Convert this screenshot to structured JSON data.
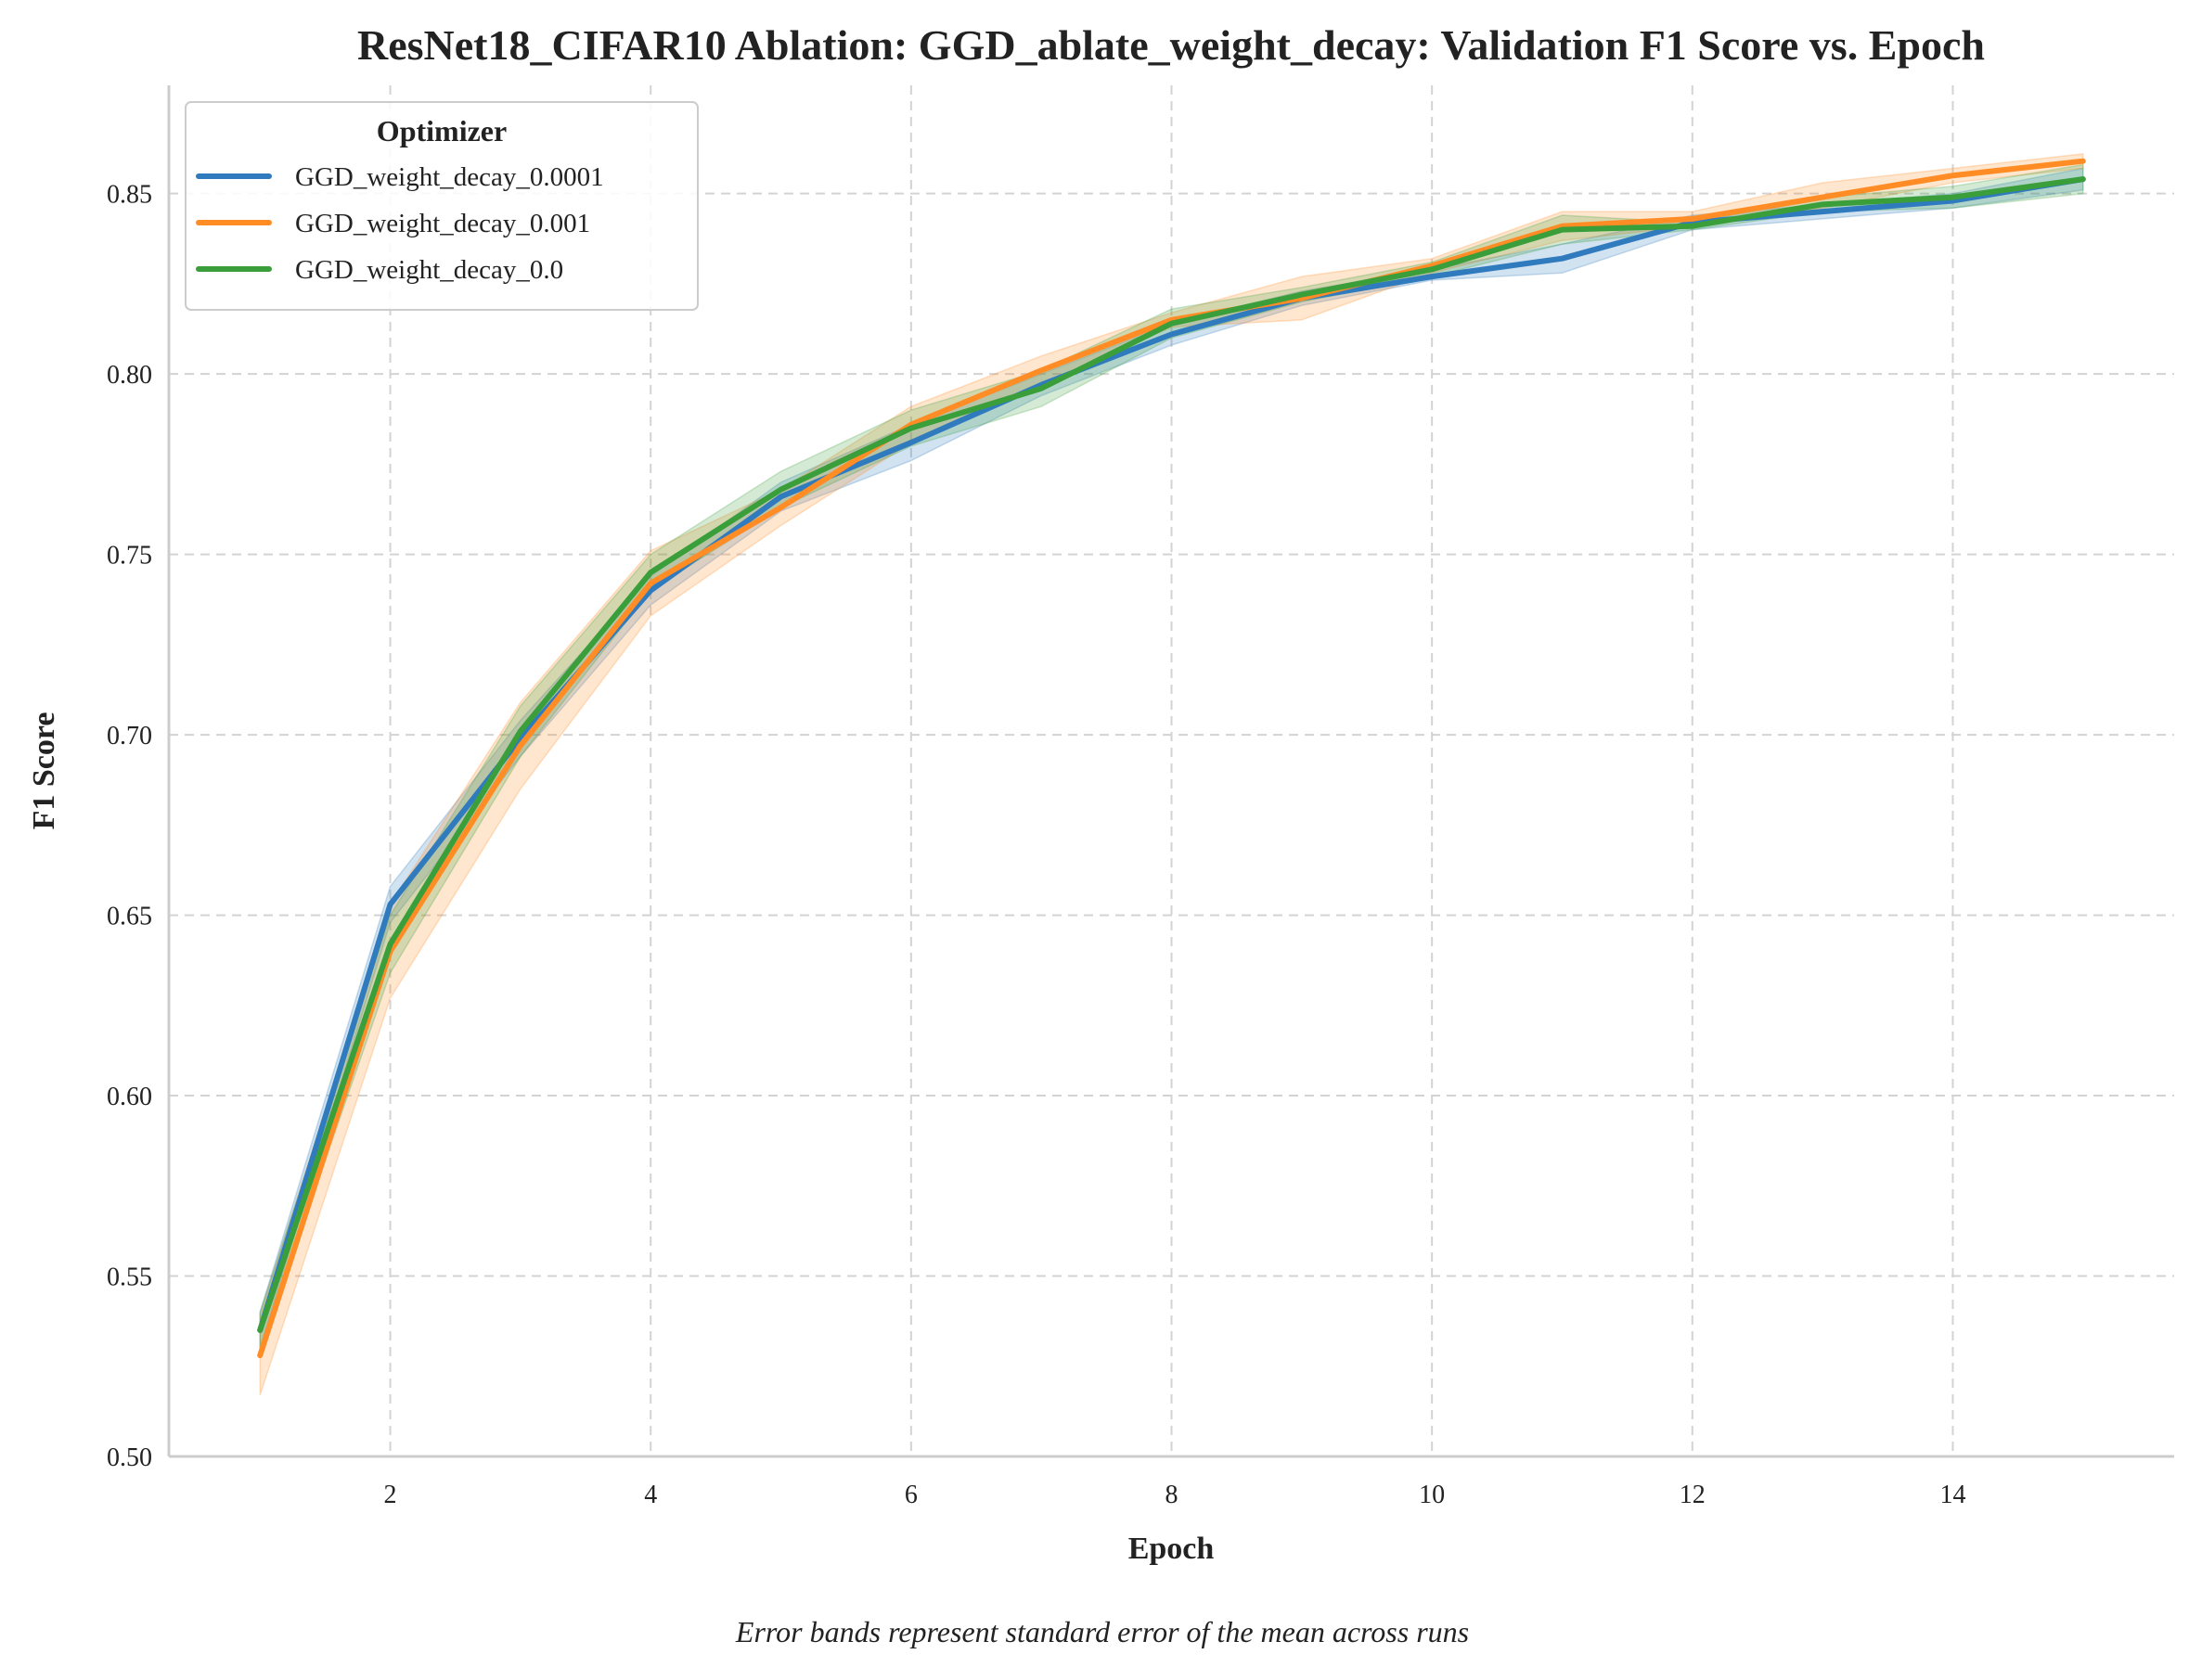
{
  "chart_data": {
    "type": "line",
    "title": "ResNet18_CIFAR10 Ablation: GGD_ablate_weight_decay: Validation F1 Score vs. Epoch",
    "xlabel": "Epoch",
    "ylabel": "F1 Score",
    "footnote": "Error bands represent standard error of the mean across runs",
    "xlim": [
      0.3,
      15.7
    ],
    "ylim": [
      0.5,
      0.88
    ],
    "x_ticks": [
      2,
      4,
      6,
      8,
      10,
      12,
      14
    ],
    "x_tick_labels": [
      "2",
      "4",
      "6",
      "8",
      "10",
      "12",
      "14"
    ],
    "y_ticks": [
      0.5,
      0.55,
      0.6,
      0.65,
      0.7,
      0.75,
      0.8,
      0.85
    ],
    "y_tick_labels": [
      "0.50",
      "0.55",
      "0.60",
      "0.65",
      "0.70",
      "0.75",
      "0.80",
      "0.85"
    ],
    "grid": true,
    "legend": {
      "title": "Optimizer",
      "placement": "top-left"
    },
    "x": [
      1,
      2,
      3,
      4,
      5,
      6,
      7,
      8,
      9,
      10,
      11,
      12,
      13,
      14,
      15
    ],
    "series": [
      {
        "name": "GGD_weight_decay_0.0001",
        "color": "#2f7bbd",
        "values": [
          0.535,
          0.653,
          0.699,
          0.74,
          0.766,
          0.781,
          0.797,
          0.811,
          0.821,
          0.827,
          0.832,
          0.842,
          0.845,
          0.848,
          0.854
        ],
        "lower": [
          0.53,
          0.648,
          0.694,
          0.736,
          0.762,
          0.776,
          0.794,
          0.808,
          0.819,
          0.826,
          0.828,
          0.84,
          0.843,
          0.846,
          0.851
        ],
        "upper": [
          0.54,
          0.658,
          0.704,
          0.744,
          0.77,
          0.786,
          0.8,
          0.814,
          0.823,
          0.829,
          0.836,
          0.844,
          0.847,
          0.85,
          0.857
        ]
      },
      {
        "name": "GGD_weight_decay_0.001",
        "color": "#ff8c24",
        "values": [
          0.528,
          0.64,
          0.697,
          0.742,
          0.763,
          0.786,
          0.801,
          0.815,
          0.821,
          0.83,
          0.841,
          0.843,
          0.849,
          0.855,
          0.859
        ],
        "lower": [
          0.517,
          0.627,
          0.685,
          0.733,
          0.758,
          0.781,
          0.797,
          0.813,
          0.815,
          0.828,
          0.837,
          0.841,
          0.846,
          0.853,
          0.857
        ],
        "upper": [
          0.539,
          0.653,
          0.709,
          0.751,
          0.768,
          0.791,
          0.805,
          0.817,
          0.827,
          0.832,
          0.845,
          0.845,
          0.853,
          0.857,
          0.861
        ]
      },
      {
        "name": "GGD_weight_decay_0.0",
        "color": "#3a9e3a",
        "values": [
          0.535,
          0.642,
          0.701,
          0.745,
          0.768,
          0.785,
          0.796,
          0.814,
          0.822,
          0.829,
          0.84,
          0.841,
          0.847,
          0.849,
          0.854
        ],
        "lower": [
          0.53,
          0.634,
          0.694,
          0.74,
          0.763,
          0.78,
          0.791,
          0.81,
          0.82,
          0.827,
          0.836,
          0.84,
          0.845,
          0.846,
          0.85
        ],
        "upper": [
          0.54,
          0.65,
          0.708,
          0.75,
          0.773,
          0.79,
          0.801,
          0.818,
          0.824,
          0.831,
          0.844,
          0.842,
          0.849,
          0.852,
          0.858
        ]
      }
    ]
  }
}
